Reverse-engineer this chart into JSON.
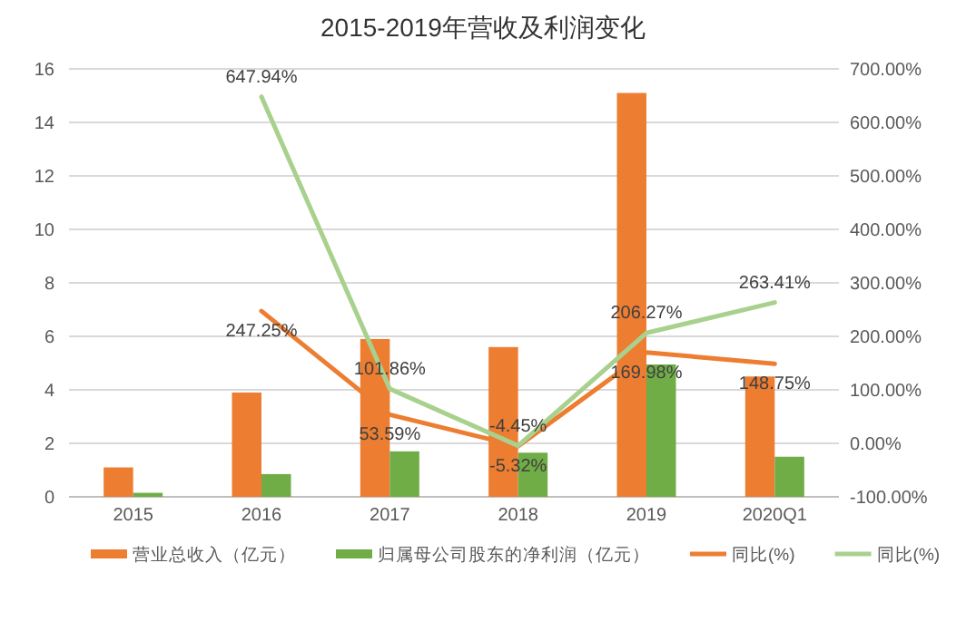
{
  "chart_data": {
    "type": "bar",
    "title": "2015-2019年营收及利润变化",
    "categories": [
      "2015",
      "2016",
      "2017",
      "2018",
      "2019",
      "2020Q1"
    ],
    "series": [
      {
        "name": "营业总收入（亿元）",
        "color": "#ed7d31",
        "values": [
          1.1,
          3.9,
          5.9,
          5.6,
          15.1,
          4.5
        ]
      },
      {
        "name": "归属母公司股东的净利润（亿元）",
        "color": "#70ad47",
        "values": [
          0.15,
          0.85,
          1.7,
          1.65,
          4.95,
          1.5
        ]
      },
      {
        "name": "同比(%)",
        "type": "line",
        "axis": "y2",
        "color": "#ed7d31",
        "values": [
          null,
          247.25,
          53.59,
          -5.32,
          169.98,
          148.75
        ],
        "value_labels": [
          null,
          "247.25%",
          "53.59%",
          "-5.32%",
          "169.98%",
          "148.75%"
        ]
      },
      {
        "name": "同比(%)",
        "type": "line",
        "axis": "y2",
        "color": "#a9d18e",
        "values": [
          null,
          647.94,
          101.86,
          -4.45,
          206.27,
          263.41
        ],
        "value_labels": [
          null,
          "647.94%",
          "101.86%",
          "-4.45%",
          "206.27%",
          "263.41%"
        ]
      }
    ],
    "ylim": [
      0,
      16
    ],
    "yticks": [
      0,
      2,
      4,
      6,
      8,
      10,
      12,
      14,
      16
    ],
    "y2lim": [
      -100,
      700
    ],
    "y2ticks": [
      {
        "value": -100,
        "label": "-100.00%"
      },
      {
        "value": 0,
        "label": "0.00%"
      },
      {
        "value": 100,
        "label": "100.00%"
      },
      {
        "value": 200,
        "label": "200.00%"
      },
      {
        "value": 300,
        "label": "300.00%"
      },
      {
        "value": 400,
        "label": "400.00%"
      },
      {
        "value": 500,
        "label": "500.00%"
      },
      {
        "value": 600,
        "label": "600.00%"
      },
      {
        "value": 700,
        "label": "700.00%"
      }
    ],
    "grid": "y",
    "legend": "bottom"
  }
}
